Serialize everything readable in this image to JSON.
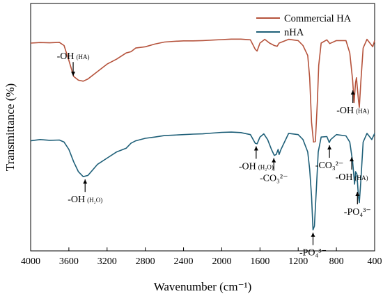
{
  "chart_data": {
    "type": "line",
    "xlabel": "Wavenumber (cm⁻¹)",
    "ylabel": "Transmittance (%)",
    "xlim": [
      4000,
      400
    ],
    "x_reversed": true,
    "xticks": [
      "4000",
      "3600",
      "3200",
      "2800",
      "2400",
      "2000",
      "1600",
      "1200",
      "800",
      "400"
    ],
    "legend_position": "top-right",
    "grid": false,
    "series": [
      {
        "name": "Commercial HA",
        "color": "#b5523b",
        "points": [
          [
            4000,
            84
          ],
          [
            3900,
            84.2
          ],
          [
            3800,
            84.1
          ],
          [
            3700,
            84.3
          ],
          [
            3650,
            83
          ],
          [
            3600,
            77
          ],
          [
            3550,
            70.5
          ],
          [
            3500,
            69
          ],
          [
            3450,
            68.6
          ],
          [
            3400,
            69.5
          ],
          [
            3300,
            72.5
          ],
          [
            3200,
            75.5
          ],
          [
            3100,
            77.5
          ],
          [
            3000,
            80
          ],
          [
            2950,
            80.5
          ],
          [
            2900,
            82
          ],
          [
            2800,
            82.5
          ],
          [
            2700,
            83.6
          ],
          [
            2600,
            84.4
          ],
          [
            2500,
            84.7
          ],
          [
            2400,
            84.9
          ],
          [
            2300,
            84.9
          ],
          [
            2200,
            85
          ],
          [
            2100,
            85.2
          ],
          [
            2000,
            85.4
          ],
          [
            1900,
            85.6
          ],
          [
            1800,
            85.6
          ],
          [
            1700,
            85.3
          ],
          [
            1650,
            81.5
          ],
          [
            1630,
            80.8
          ],
          [
            1600,
            84
          ],
          [
            1550,
            85.5
          ],
          [
            1500,
            84
          ],
          [
            1450,
            83
          ],
          [
            1420,
            82.7
          ],
          [
            1400,
            84
          ],
          [
            1300,
            85.5
          ],
          [
            1200,
            85
          ],
          [
            1150,
            83
          ],
          [
            1100,
            79
          ],
          [
            1080,
            70
          ],
          [
            1060,
            52
          ],
          [
            1040,
            44
          ],
          [
            1020,
            44.2
          ],
          [
            1000,
            60
          ],
          [
            985,
            75
          ],
          [
            960,
            84
          ],
          [
            900,
            85.3
          ],
          [
            870,
            83.8
          ],
          [
            800,
            85
          ],
          [
            700,
            85
          ],
          [
            660,
            80
          ],
          [
            630,
            69
          ],
          [
            615,
            60
          ],
          [
            600,
            68
          ],
          [
            590,
            70
          ],
          [
            570,
            61
          ],
          [
            560,
            58
          ],
          [
            545,
            68
          ],
          [
            520,
            82
          ],
          [
            480,
            85.5
          ],
          [
            420,
            82.5
          ],
          [
            400,
            85
          ]
        ]
      },
      {
        "name": "nHA",
        "color": "#1e5f78",
        "points": [
          [
            4000,
            44.5
          ],
          [
            3900,
            45
          ],
          [
            3800,
            44.7
          ],
          [
            3700,
            44.8
          ],
          [
            3650,
            44
          ],
          [
            3600,
            41
          ],
          [
            3550,
            36
          ],
          [
            3500,
            32
          ],
          [
            3450,
            30
          ],
          [
            3400,
            30.5
          ],
          [
            3300,
            35
          ],
          [
            3200,
            37.5
          ],
          [
            3100,
            40
          ],
          [
            3000,
            41.5
          ],
          [
            2950,
            43.5
          ],
          [
            2900,
            44.5
          ],
          [
            2800,
            45.5
          ],
          [
            2700,
            46
          ],
          [
            2600,
            46.6
          ],
          [
            2500,
            46.8
          ],
          [
            2400,
            47
          ],
          [
            2300,
            47.2
          ],
          [
            2200,
            47.3
          ],
          [
            2100,
            47.6
          ],
          [
            2000,
            47.9
          ],
          [
            1900,
            48
          ],
          [
            1800,
            47.8
          ],
          [
            1700,
            47
          ],
          [
            1650,
            43.5
          ],
          [
            1630,
            43.3
          ],
          [
            1600,
            46
          ],
          [
            1560,
            47.3
          ],
          [
            1520,
            45
          ],
          [
            1480,
            41
          ],
          [
            1450,
            38.6
          ],
          [
            1430,
            39
          ],
          [
            1410,
            41
          ],
          [
            1400,
            39
          ],
          [
            1380,
            41
          ],
          [
            1300,
            47.5
          ],
          [
            1200,
            47
          ],
          [
            1150,
            45
          ],
          [
            1100,
            40
          ],
          [
            1080,
            33
          ],
          [
            1060,
            22
          ],
          [
            1045,
            8.5
          ],
          [
            1030,
            10
          ],
          [
            1010,
            25
          ],
          [
            990,
            40
          ],
          [
            960,
            46
          ],
          [
            900,
            46.2
          ],
          [
            875,
            43.8
          ],
          [
            860,
            45
          ],
          [
            800,
            47
          ],
          [
            700,
            46.5
          ],
          [
            660,
            44
          ],
          [
            630,
            36
          ],
          [
            610,
            27
          ],
          [
            600,
            32
          ],
          [
            585,
            31
          ],
          [
            570,
            22
          ],
          [
            560,
            19.5
          ],
          [
            545,
            28
          ],
          [
            520,
            44
          ],
          [
            480,
            47.5
          ],
          [
            430,
            45
          ],
          [
            400,
            47.5
          ]
        ]
      }
    ],
    "annotations": [
      {
        "label": "-OH",
        "sub": "(HA)",
        "x": 3555,
        "y": 69.6,
        "dir": "up"
      },
      {
        "label": "-OH",
        "sub": "(H₂O)",
        "x": 3430,
        "y": 30,
        "dir": "down"
      },
      {
        "label": "-OH",
        "sub": "(H₂O)",
        "x": 1640,
        "y": 43.4,
        "dir": "down"
      },
      {
        "label": "-CO₃²⁻",
        "sub": "",
        "x": 1455,
        "y": 38.6,
        "dir": "down"
      },
      {
        "label": "-PO₄³⁻",
        "sub": "",
        "x": 1045,
        "y": 8.5,
        "dir": "down"
      },
      {
        "label": "-CO₃²⁻",
        "sub": "",
        "x": 873,
        "y": 43.8,
        "dir": "down"
      },
      {
        "label": "-OH",
        "sub": "(HA)",
        "x": 628,
        "y": 66,
        "dir": "down"
      },
      {
        "label": "-OH",
        "sub": "(HA)",
        "x": 640,
        "y": 39,
        "dir": "down"
      },
      {
        "label": "-PO₄³⁻",
        "sub": "",
        "x": 580,
        "y": 25,
        "dir": "down"
      }
    ]
  }
}
